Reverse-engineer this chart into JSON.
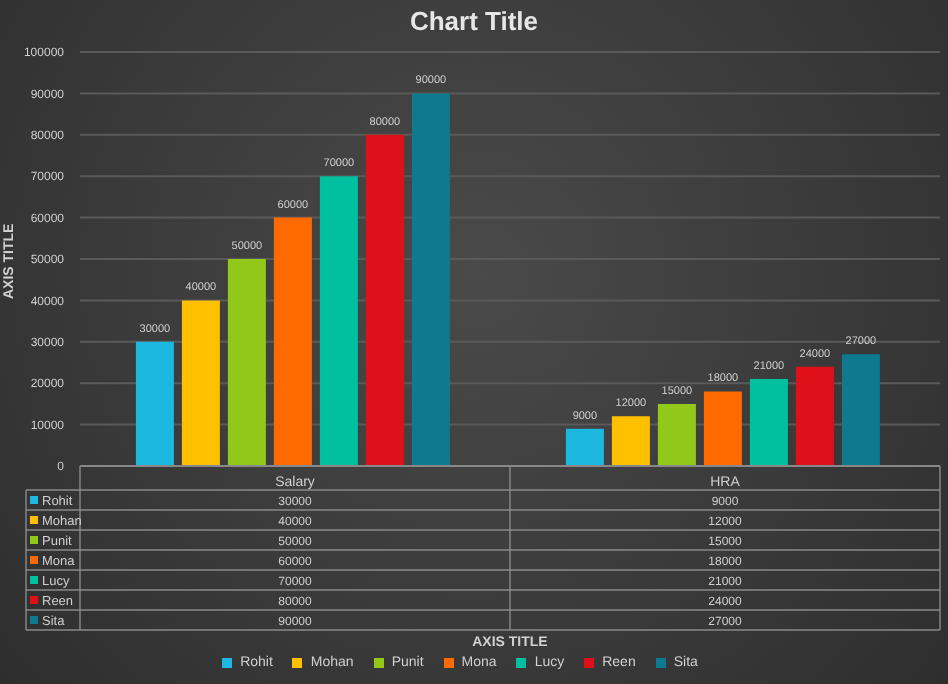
{
  "chart_data": {
    "type": "bar",
    "title": "Chart Title",
    "ylabel": "AXIS TITLE",
    "annotations": [
      "AXIS TITLE"
    ],
    "categories": [
      "Salary",
      "HRA"
    ],
    "series": [
      {
        "name": "Rohit",
        "color": "#1cb8e0",
        "values": [
          30000,
          9000
        ],
        "value_labels": [
          "30000",
          "9000"
        ]
      },
      {
        "name": "Mohan",
        "color": "#ffc000",
        "values": [
          40000,
          12000
        ],
        "value_labels": [
          "40000",
          "12000"
        ]
      },
      {
        "name": "Punit",
        "color": "#92c81a",
        "values": [
          50000,
          15000
        ],
        "value_labels": [
          "50000",
          "15000"
        ]
      },
      {
        "name": "Mona",
        "color": "#ff6a00",
        "values": [
          60000,
          18000
        ],
        "value_labels": [
          "60000",
          "18000"
        ]
      },
      {
        "name": "Lucy",
        "color": "#00c0a0",
        "values": [
          70000,
          21000
        ],
        "value_labels": [
          "70000",
          "21000"
        ]
      },
      {
        "name": "Reen",
        "color": "#e0101a",
        "values": [
          80000,
          24000
        ],
        "value_labels": [
          "80000",
          "24000"
        ]
      },
      {
        "name": "Sita",
        "color": "#0e7a90",
        "values": [
          90000,
          27000
        ],
        "value_labels": [
          "90000",
          "27000"
        ]
      }
    ],
    "ylim": [
      0,
      100000
    ],
    "yticks": [
      0,
      10000,
      20000,
      30000,
      40000,
      50000,
      60000,
      70000,
      80000,
      90000,
      100000
    ],
    "grid": "y",
    "legend": "bottom",
    "data_labels": true
  }
}
